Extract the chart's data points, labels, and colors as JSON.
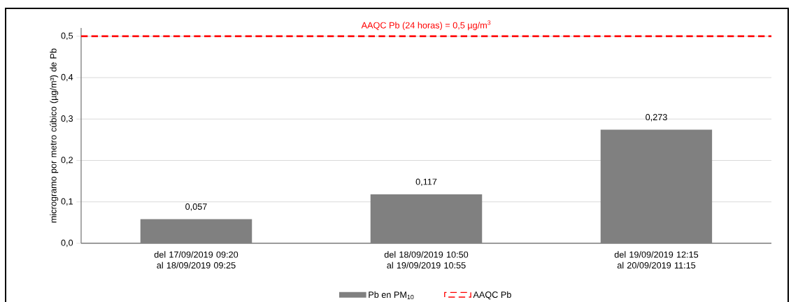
{
  "chart_data": {
    "type": "bar",
    "categories": [
      "del 17/09/2019 09:20 al 18/09/2019 09:25",
      "del 18/09/2019 10:50 al 19/09/2019 10:55",
      "del 19/09/2019 12:15 al 20/09/2019 11:15"
    ],
    "series": [
      {
        "name": "Pb en PM$_{10}$",
        "color": "#808080",
        "values": [
          0.057,
          0.117,
          0.273
        ],
        "value_labels": [
          "0,057",
          "0,117",
          "0,273"
        ]
      }
    ],
    "ylabel": "microgramo por metro cúbico (µg/m³) de Pb",
    "ylim": [
      0,
      0.52
    ],
    "yticks": [
      {
        "value": 0,
        "label": "0,0"
      },
      {
        "value": 0.1,
        "label": "0,1"
      },
      {
        "value": 0.2,
        "label": "0,2"
      },
      {
        "value": 0.3,
        "label": "0,3"
      },
      {
        "value": 0.4,
        "label": "0,4"
      },
      {
        "value": 0.5,
        "label": "0,5"
      }
    ],
    "ref_lines": [
      {
        "axis": "y",
        "value": 0.5,
        "label": "AAQC Pb",
        "color": "#ff0000",
        "line_style": "dashed"
      }
    ],
    "annotations": [
      {
        "text": "AAQC Pb (24 horas) = 0,5 µg/m$^{3}$",
        "y": 0.5
      }
    ],
    "grid": "y",
    "legend": "bottom"
  }
}
